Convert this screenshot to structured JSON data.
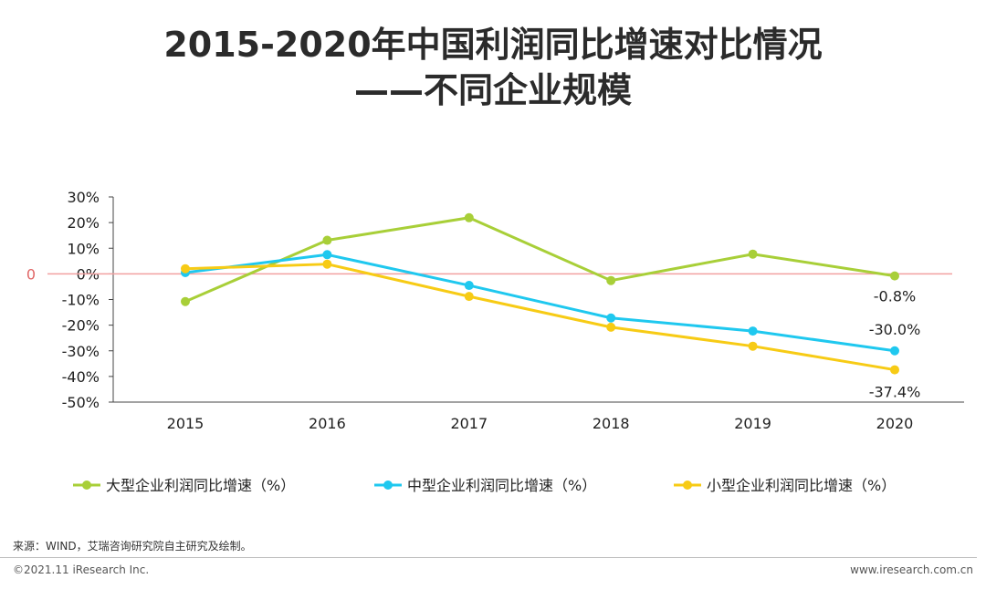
{
  "header": {
    "title_line1": "2015-2020年中国利润同比增速对比情况",
    "title_line2": "——不同企业规模"
  },
  "chart_data": {
    "type": "line",
    "categories": [
      "2015",
      "2016",
      "2017",
      "2018",
      "2019",
      "2020"
    ],
    "ylim": [
      -50,
      30
    ],
    "yticks": [
      30,
      20,
      10,
      0,
      -10,
      -20,
      -30,
      -40,
      -50
    ],
    "ytick_labels": [
      "30%",
      "20%",
      "10%",
      "0%",
      "-10%",
      "-20%",
      "-30%",
      "-40%",
      "-50%"
    ],
    "reference_line": {
      "value": 0,
      "label": "0",
      "color": "#f2a0a0"
    },
    "series": [
      {
        "name": "大型企业利润同比增速（%）",
        "color": "#a8cf38",
        "values": [
          -10.8,
          13.1,
          21.9,
          -2.6,
          7.7,
          -0.8
        ]
      },
      {
        "name": "中型企业利润同比增速（%）",
        "color": "#1fc8ef",
        "values": [
          0.5,
          7.5,
          -4.5,
          -17.2,
          -22.3,
          -30.0
        ]
      },
      {
        "name": "小型企业利润同比增速（%）",
        "color": "#f7cb15",
        "values": [
          2.0,
          3.8,
          -8.8,
          -20.8,
          -28.2,
          -37.4
        ]
      }
    ],
    "data_labels": [
      {
        "series": 0,
        "index": 5,
        "text": "-0.8%"
      },
      {
        "series": 1,
        "index": 5,
        "text": "-30.0%"
      },
      {
        "series": 2,
        "index": 5,
        "text": "-37.4%"
      }
    ],
    "legend_position": "bottom"
  },
  "footer": {
    "source": "来源：WIND，艾瑞咨询研究院自主研究及绘制。",
    "copyright": "©2021.11 iResearch Inc.",
    "website": "www.iresearch.com.cn"
  }
}
